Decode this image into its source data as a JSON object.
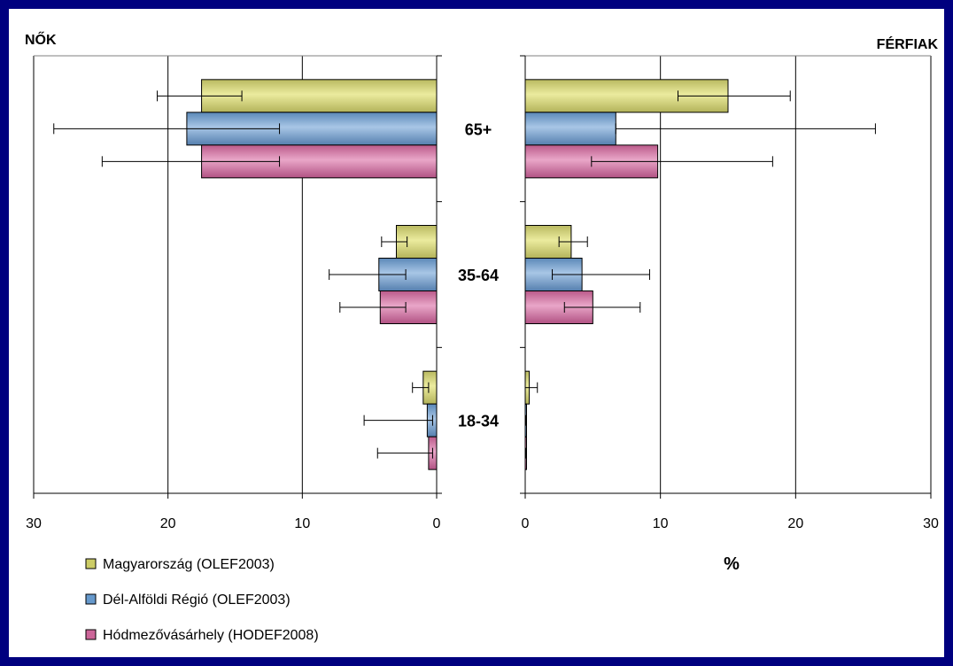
{
  "chart_data": {
    "type": "bar",
    "orientation": "horizontal",
    "layout": "population-pyramid",
    "categories": [
      "65+",
      "35-64",
      "18-34"
    ],
    "panels": [
      {
        "title": "NŐK",
        "xlim": [
          30,
          0
        ],
        "ticks": [
          "30",
          "20",
          "10",
          "0"
        ]
      },
      {
        "title": "FÉRFIAK",
        "xlim": [
          0,
          30
        ],
        "ticks": [
          "0",
          "10",
          "20",
          "30"
        ]
      }
    ],
    "xlabel": "%",
    "grid": true,
    "legend_position": "bottom-left",
    "series": [
      {
        "name": "Magyarország (OLEF2003)",
        "color": "#cccc66",
        "women": [
          17.5,
          3.0,
          1.0
        ],
        "women_err_low": [
          14.5,
          2.2,
          0.6
        ],
        "women_err_high": [
          20.8,
          4.1,
          1.8
        ],
        "men": [
          15.0,
          3.4,
          0.3
        ],
        "men_err_low": [
          11.3,
          2.5,
          0.0
        ],
        "men_err_high": [
          19.6,
          4.6,
          0.9
        ]
      },
      {
        "name": "Dél-Alföldi Régió (OLEF2003)",
        "color": "#6699cc",
        "women": [
          18.6,
          4.3,
          0.7
        ],
        "women_err_low": [
          11.7,
          2.3,
          0.3
        ],
        "women_err_high": [
          28.5,
          8.0,
          5.4
        ],
        "men": [
          6.7,
          4.2,
          0.05
        ],
        "men_err_low": [
          6.7,
          2.0,
          0.0
        ],
        "men_err_high": [
          25.9,
          9.2,
          0.05
        ]
      },
      {
        "name": "Hódmezővásárhely (HODEF2008)",
        "color": "#cc6699",
        "women": [
          17.5,
          4.2,
          0.6
        ],
        "women_err_low": [
          11.7,
          2.3,
          0.3
        ],
        "women_err_high": [
          24.9,
          7.2,
          4.4
        ],
        "men": [
          9.8,
          5.0,
          0.05
        ],
        "men_err_low": [
          4.9,
          2.9,
          0.0
        ],
        "men_err_high": [
          18.3,
          8.5,
          0.05
        ]
      }
    ]
  }
}
